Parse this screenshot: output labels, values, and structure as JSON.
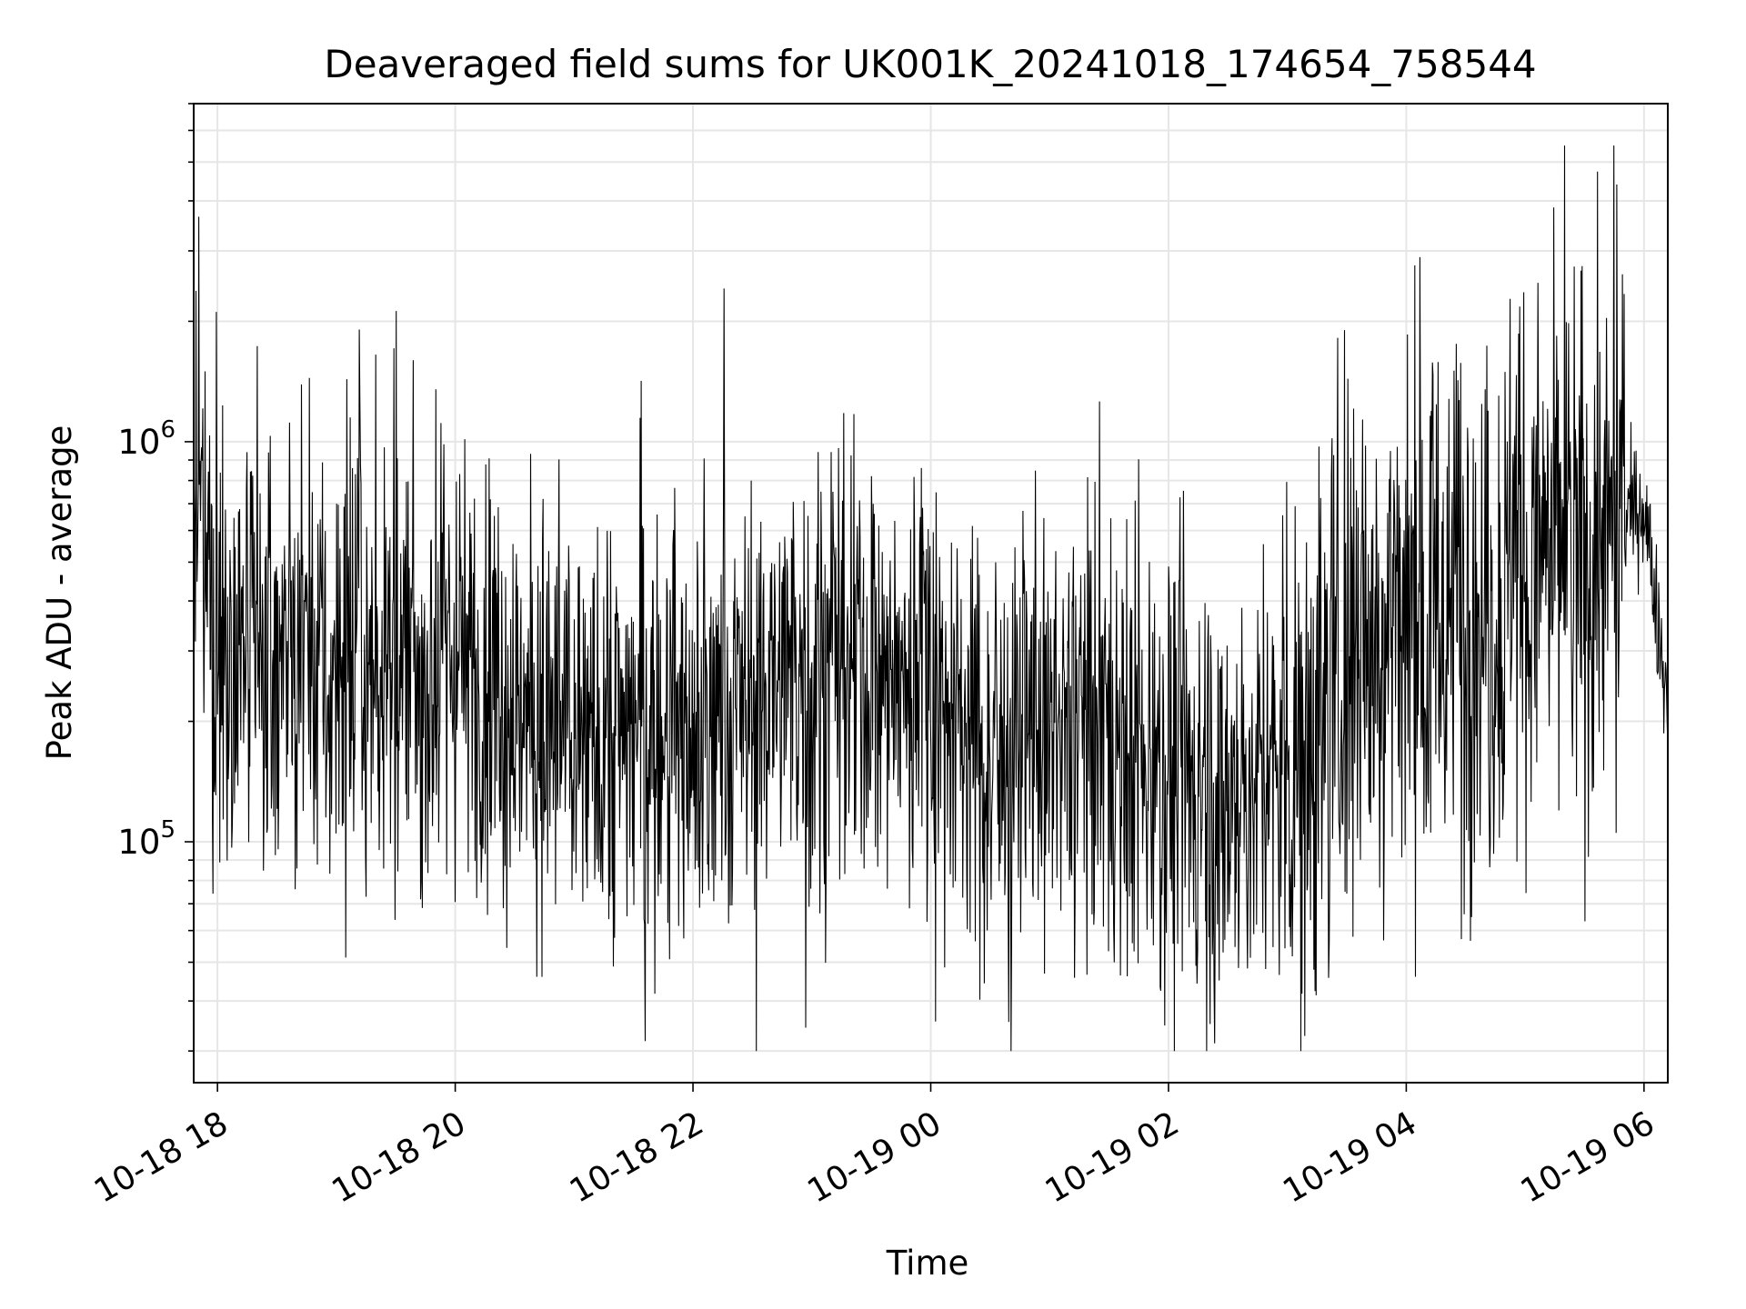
{
  "chart_data": {
    "type": "line",
    "title": "Deaveraged field sums for UK001K_20241018_174654_758544",
    "xlabel": "Time",
    "ylabel": "Peak ADU - average",
    "y_scale": "log",
    "grid": true,
    "series_color": "#000000",
    "xlim": [
      "2024-10-18T17:48",
      "2024-10-19T06:12"
    ],
    "ylim": [
      25000,
      7000000
    ],
    "x_ticks": [
      "2024-10-18T18:00",
      "2024-10-18T20:00",
      "2024-10-18T22:00",
      "2024-10-19T00:00",
      "2024-10-19T02:00",
      "2024-10-19T04:00",
      "2024-10-19T06:00"
    ],
    "x_tick_labels": [
      "10-18 18",
      "10-18 20",
      "10-18 22",
      "10-19 00",
      "10-19 02",
      "10-19 04",
      "10-19 06"
    ],
    "y_ticks": [
      100000,
      1000000
    ],
    "y_tick_labels": [
      {
        "base": "10",
        "exp": "5"
      },
      {
        "base": "10",
        "exp": "6"
      }
    ],
    "series": [
      {
        "x": [
          "2024-10-18T17:48",
          "2024-10-18T18:00",
          "2024-10-18T18:30",
          "2024-10-18T19:00",
          "2024-10-18T19:30",
          "2024-10-18T20:00",
          "2024-10-18T20:30",
          "2024-10-18T21:00",
          "2024-10-18T21:30",
          "2024-10-18T22:00",
          "2024-10-18T22:30",
          "2024-10-18T23:00",
          "2024-10-18T23:30",
          "2024-10-19T00:00",
          "2024-10-19T00:30",
          "2024-10-19T01:00",
          "2024-10-19T01:30",
          "2024-10-19T02:00",
          "2024-10-19T02:30",
          "2024-10-19T03:00",
          "2024-10-19T03:30",
          "2024-10-19T04:00",
          "2024-10-19T04:30",
          "2024-10-19T05:00",
          "2024-10-19T05:30",
          "2024-10-19T06:00",
          "2024-10-19T06:12"
        ],
        "values": [
          700000,
          300000,
          280000,
          260000,
          250000,
          280000,
          230000,
          170000,
          200000,
          170000,
          230000,
          270000,
          250000,
          250000,
          160000,
          180000,
          200000,
          150000,
          130000,
          140000,
          300000,
          380000,
          400000,
          450000,
          550000,
          700000,
          220000
        ]
      }
    ]
  }
}
